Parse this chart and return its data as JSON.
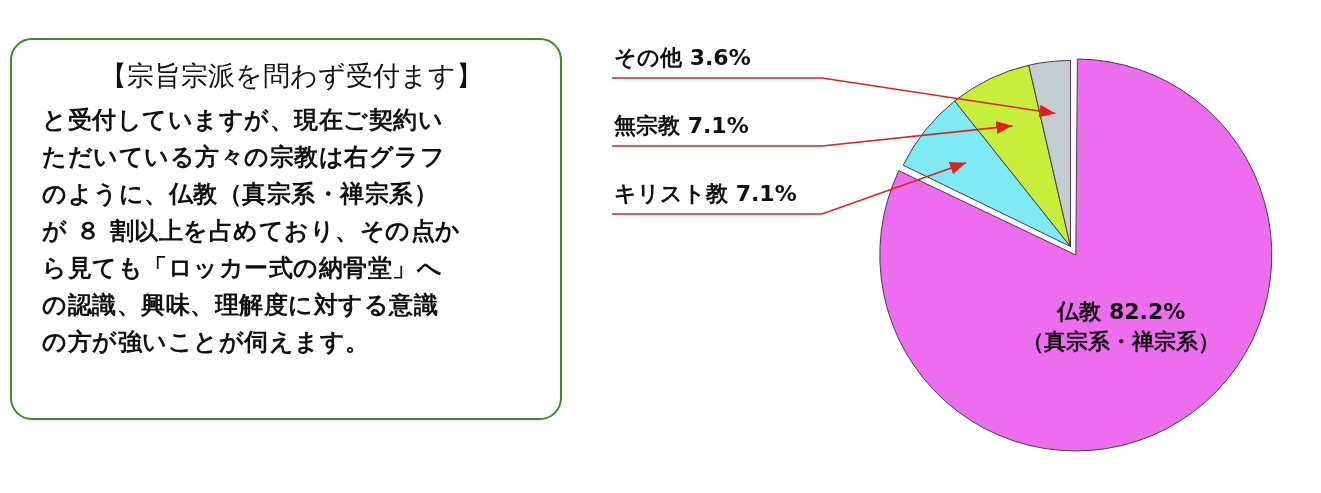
{
  "chart_data": [
    {
      "type": "other",
      "title": "【宗旨宗派を問わず受付ます】",
      "annotations": [
        "と受付していますが、現在ご契約い",
        "ただいている方々の宗教は右グラフ",
        "のように、仏教（真宗系・禅宗系）",
        "が ８ 割以上を占めており、その点か",
        "ら見ても「ロッカー式の納骨堂」へ",
        "の認識、興味、理解度に対する意識",
        "の方が強いことが伺えます。"
      ]
    },
    {
      "type": "pie",
      "categories": [
        "仏教",
        "キリスト教",
        "無宗教",
        "その他"
      ],
      "values": [
        82.2,
        7.1,
        7.1,
        3.6
      ],
      "colors": [
        "#ec6ded",
        "#7eeaf4",
        "#c8ee3c",
        "#c5cdd3"
      ],
      "value_labels": [
        "82.2%",
        "7.1%",
        "7.1%",
        "3.6%"
      ],
      "annotations": [
        "（真宗系・禅宗系）"
      ],
      "legend": false
    }
  ]
}
